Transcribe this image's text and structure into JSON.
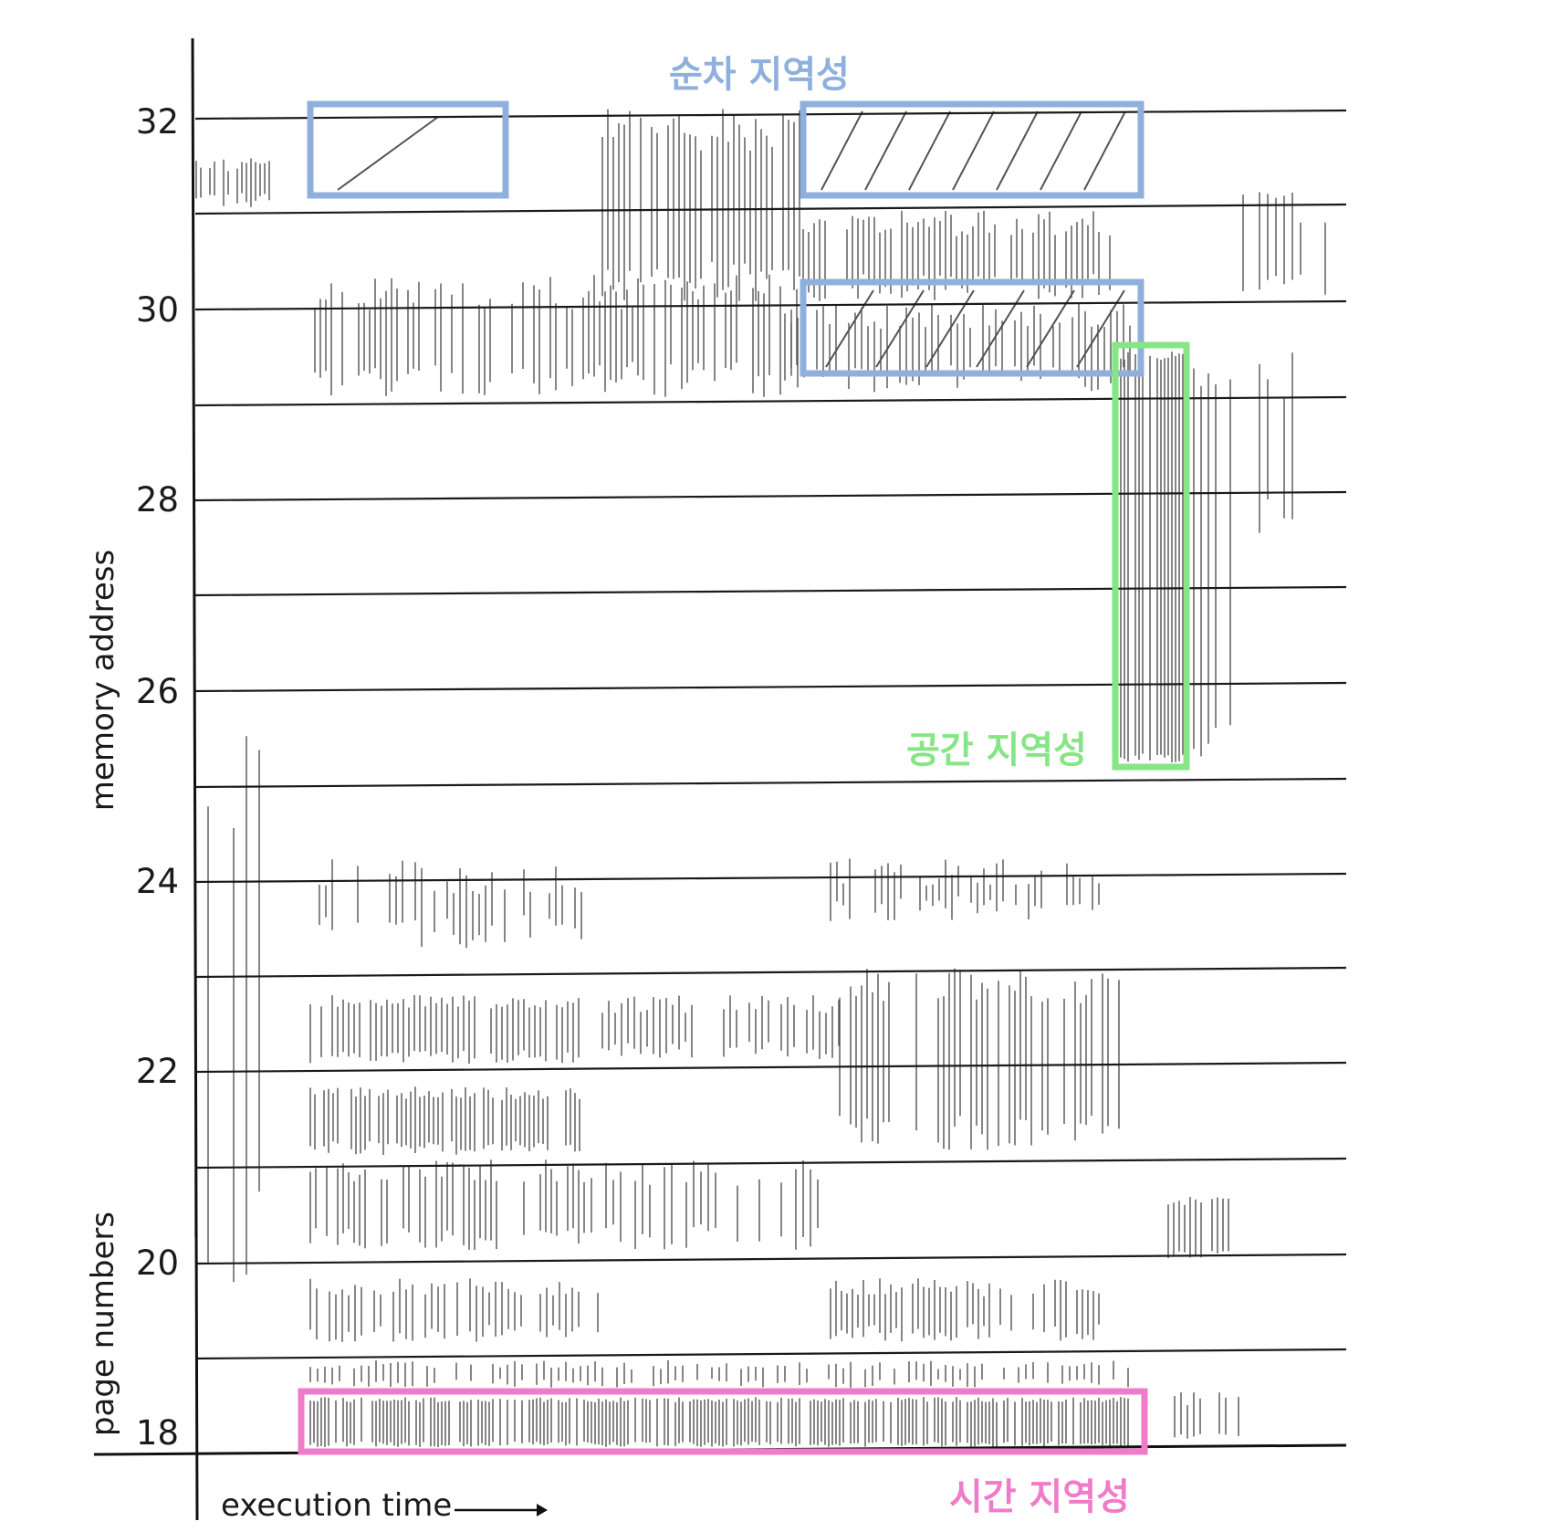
{
  "figure": {
    "y_axis": {
      "title_top": "memory address",
      "title_bottom": "page numbers",
      "tick_labels": [
        "32",
        "30",
        "28",
        "26",
        "24",
        "22",
        "20",
        "18"
      ]
    },
    "x_axis": {
      "title": "execution time"
    },
    "colors": {
      "sequential": "#8fb0dc",
      "spatial": "#86e585",
      "temporal": "#f07bc8",
      "ink": "#1a1a1a"
    },
    "annotations": {
      "sequential_label": "순차 지역성",
      "spatial_label": "공간 지역성",
      "temporal_label": "시간 지역성"
    }
  }
}
